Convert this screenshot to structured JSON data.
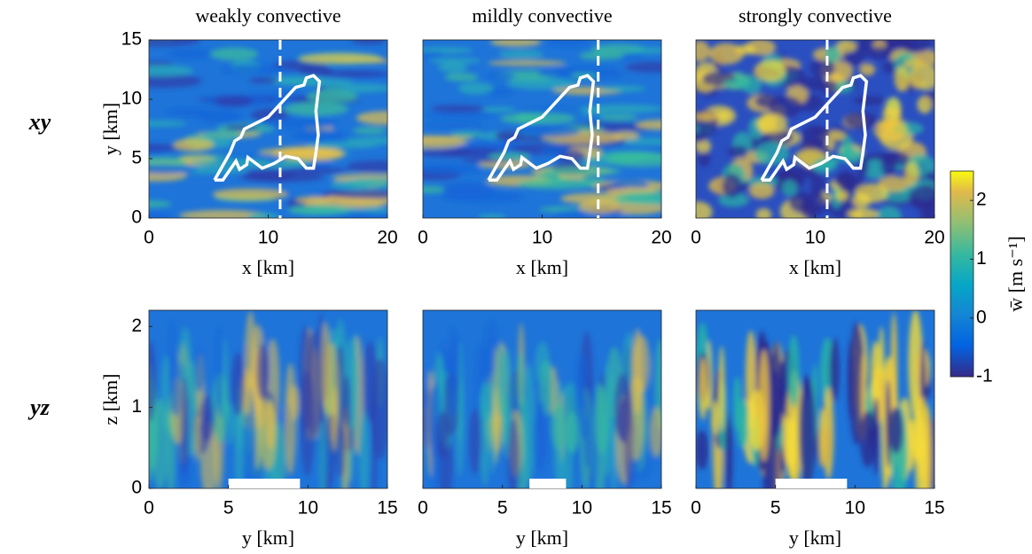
{
  "chart_data": [
    {
      "type": "heatmap",
      "title": "weakly convective",
      "row_label": "xy",
      "xlabel": "x [km]",
      "ylabel": "y [km]",
      "xlim": [
        0,
        20
      ],
      "ylim": [
        0,
        15
      ],
      "xticks": [
        0,
        10,
        20
      ],
      "yticks": [
        0,
        5,
        10,
        15
      ],
      "marker_x": 11
    },
    {
      "type": "heatmap",
      "title": "mildly convective",
      "xlabel": "x [km]",
      "xlim": [
        0,
        20
      ],
      "ylim": [
        0,
        15
      ],
      "xticks": [
        0,
        10,
        20
      ],
      "marker_x": 14.7
    },
    {
      "type": "heatmap",
      "title": "strongly convective",
      "xlabel": "x [km]",
      "xlim": [
        0,
        20
      ],
      "ylim": [
        0,
        15
      ],
      "xticks": [
        0,
        10,
        20
      ],
      "marker_x": 11
    },
    {
      "type": "heatmap",
      "row_label": "yz",
      "xlabel": "y [km]",
      "ylabel": "z [km]",
      "xlim": [
        0,
        15
      ],
      "ylim": [
        0,
        2.2
      ],
      "xticks": [
        0,
        5,
        10,
        15
      ],
      "yticks": [
        0,
        1,
        2
      ],
      "bar_range": [
        5,
        9.5
      ]
    },
    {
      "type": "heatmap",
      "xlabel": "y [km]",
      "xlim": [
        0,
        15
      ],
      "ylim": [
        0,
        2.2
      ],
      "xticks": [
        0,
        5,
        10,
        15
      ],
      "bar_range": [
        6.7,
        9
      ]
    },
    {
      "type": "heatmap",
      "xlabel": "y [km]",
      "xlim": [
        0,
        15
      ],
      "ylim": [
        0,
        2.2
      ],
      "xticks": [
        0,
        5,
        10,
        15
      ],
      "bar_range": [
        5,
        9.5
      ]
    }
  ],
  "colorbar": {
    "label": "w̄ [m s⁻¹]",
    "lim": [
      -1,
      2.5
    ],
    "ticks": [
      -1,
      0,
      1,
      2
    ]
  }
}
